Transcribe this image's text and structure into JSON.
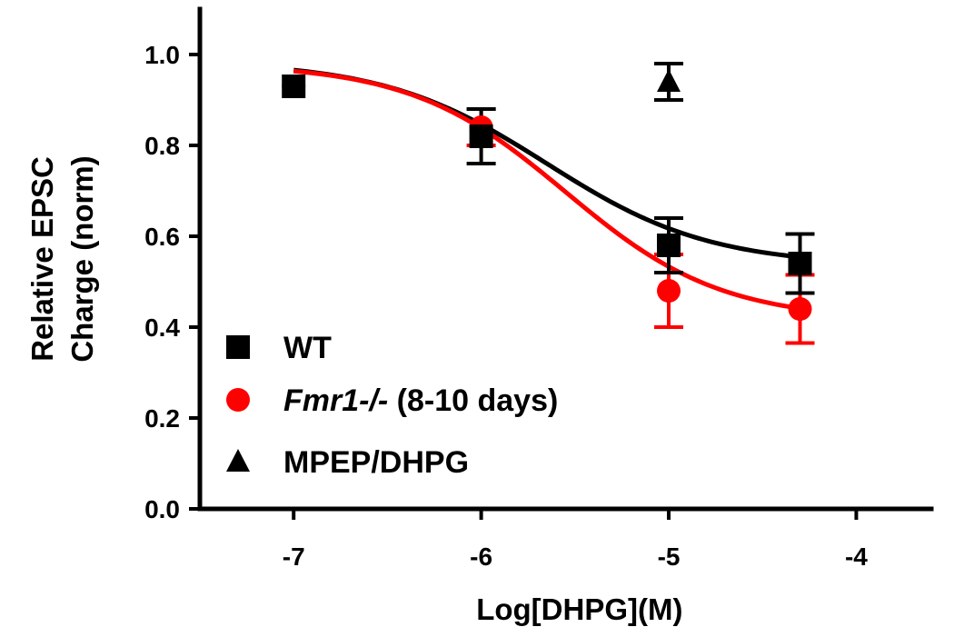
{
  "chart_data": {
    "type": "scatter",
    "xlabel": "Log[DHPG](M)",
    "ylabel": [
      "Relative EPSC",
      "Charge (norm)"
    ],
    "xlim": [
      -7.5,
      -3.6
    ],
    "ylim": [
      0.0,
      1.1
    ],
    "xticks": [
      "-7",
      "-6",
      "-5",
      "-4"
    ],
    "xtick_values": [
      -7,
      -6,
      -5,
      -4
    ],
    "yticks": [
      "0.0",
      "0.2",
      "0.4",
      "0.6",
      "0.8",
      "1.0"
    ],
    "ytick_values": [
      0.0,
      0.2,
      0.4,
      0.6,
      0.8,
      1.0
    ],
    "legend_position": "bottom-left",
    "series": [
      {
        "name": "WT",
        "name_parts": [
          {
            "text": "WT",
            "italic": false
          }
        ],
        "marker": "square",
        "color": "#000000",
        "points": [
          {
            "x": -7.0,
            "y": 0.93,
            "err": 0.0
          },
          {
            "x": -6.0,
            "y": 0.82,
            "err": 0.06
          },
          {
            "x": -5.0,
            "y": 0.58,
            "err": 0.06
          },
          {
            "x": -4.3,
            "y": 0.54,
            "err": 0.065
          }
        ],
        "fit": {
          "top": 0.985,
          "bottom": 0.535,
          "logEC50": -5.65,
          "hill": 1.0
        }
      },
      {
        "name": "Fmr1-/- (8-10 days)",
        "name_parts": [
          {
            "text": "Fmr1-/-",
            "italic": true
          },
          {
            "text": " (8-10 days)",
            "italic": false
          }
        ],
        "marker": "circle",
        "color": "#ff0000",
        "points": [
          {
            "x": -7.0,
            "y": 0.93,
            "err": 0.0
          },
          {
            "x": -6.0,
            "y": 0.84,
            "err": 0.04
          },
          {
            "x": -5.0,
            "y": 0.48,
            "err": 0.08
          },
          {
            "x": -4.3,
            "y": 0.44,
            "err": 0.075
          }
        ],
        "fit": {
          "top": 0.98,
          "bottom": 0.415,
          "logEC50": -5.55,
          "hill": 1.05
        }
      },
      {
        "name": "MPEP/DHPG",
        "name_parts": [
          {
            "text": "MPEP/DHPG",
            "italic": false
          }
        ],
        "marker": "triangle",
        "color": "#000000",
        "points": [
          {
            "x": -5.0,
            "y": 0.94,
            "err": 0.04
          }
        ]
      }
    ]
  }
}
